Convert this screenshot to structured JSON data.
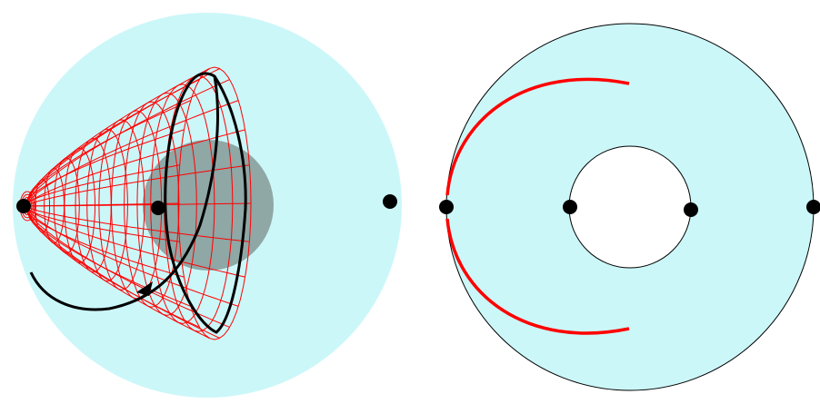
{
  "figure": {
    "colors": {
      "disk_fill": "#ccf7f9",
      "shadow_disk": "#8fa7a5",
      "wire": "#ff0000",
      "curve": "#000000",
      "point": "#000000",
      "outline": "#000000",
      "hole_fill": "#ffffff"
    },
    "left_panel": {
      "elements": [
        "light-blue-disk",
        "gray-shadow-disk",
        "red-wireframe-surface",
        "black-curve-loops",
        "black-points",
        "arrow-marker"
      ]
    },
    "right_panel": {
      "elements": [
        "light-blue-annulus",
        "red-arcs",
        "black-points"
      ]
    }
  }
}
